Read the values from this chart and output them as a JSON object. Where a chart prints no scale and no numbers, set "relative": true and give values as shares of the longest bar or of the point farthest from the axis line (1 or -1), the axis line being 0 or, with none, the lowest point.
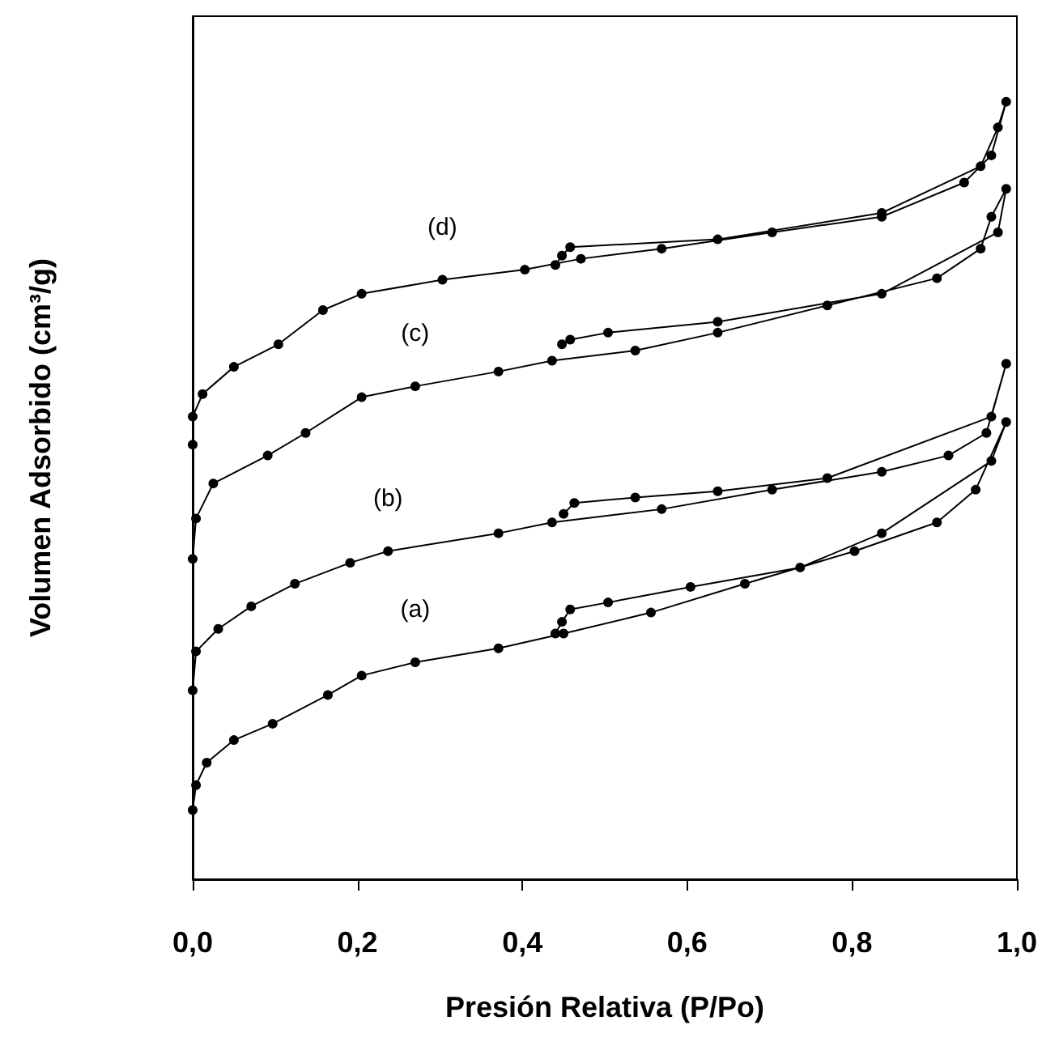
{
  "chart_data": {
    "type": "line",
    "relative": true,
    "xlabel": "Presión Relativa (P/Po)",
    "ylabel": "Volumen Adsorbido (cm³/g)",
    "xlim": [
      0,
      1
    ],
    "xticks": [
      {
        "value": 0,
        "label": "0,0"
      },
      {
        "value": 0.2,
        "label": "0,2"
      },
      {
        "value": 0.4,
        "label": "0,4"
      },
      {
        "value": 0.6,
        "label": "0,6"
      },
      {
        "value": 0.8,
        "label": "0,8"
      },
      {
        "value": 1,
        "label": "1,0"
      }
    ],
    "marker": "circle",
    "line_style": "solid",
    "series": [
      {
        "name": "(a)",
        "color": "#000000",
        "x": [
          0,
          0.004,
          0.017,
          0.05,
          0.097,
          0.164,
          0.205,
          0.27,
          0.371,
          0.45,
          0.556,
          0.67,
          0.803,
          0.903,
          0.95,
          0.987,
          0.969,
          0.836,
          0.737,
          0.604,
          0.504,
          0.458,
          0.448,
          0.44
        ],
        "values": [
          0.089,
          0.121,
          0.15,
          0.179,
          0.2,
          0.237,
          0.262,
          0.279,
          0.297,
          0.316,
          0.343,
          0.38,
          0.422,
          0.459,
          0.501,
          0.588,
          0.538,
          0.445,
          0.401,
          0.376,
          0.356,
          0.347,
          0.331,
          0.316
        ]
      },
      {
        "name": "(b)",
        "color": "#000000",
        "x": [
          0,
          0.004,
          0.031,
          0.071,
          0.124,
          0.191,
          0.237,
          0.371,
          0.436,
          0.569,
          0.703,
          0.836,
          0.917,
          0.963,
          0.987,
          0.969,
          0.77,
          0.637,
          0.537,
          0.463,
          0.45
        ],
        "values": [
          0.243,
          0.293,
          0.322,
          0.351,
          0.38,
          0.407,
          0.422,
          0.445,
          0.459,
          0.476,
          0.501,
          0.524,
          0.545,
          0.574,
          0.663,
          0.595,
          0.516,
          0.499,
          0.491,
          0.484,
          0.47
        ]
      },
      {
        "name": "(c)",
        "color": "#000000",
        "x": [
          0,
          0.004,
          0.025,
          0.091,
          0.137,
          0.205,
          0.27,
          0.371,
          0.436,
          0.537,
          0.637,
          0.77,
          0.903,
          0.956,
          0.969,
          0.987,
          0.977,
          0.836,
          0.637,
          0.504,
          0.458,
          0.448
        ],
        "values": [
          0.412,
          0.464,
          0.509,
          0.545,
          0.574,
          0.62,
          0.634,
          0.653,
          0.667,
          0.68,
          0.703,
          0.738,
          0.773,
          0.811,
          0.852,
          0.888,
          0.832,
          0.753,
          0.717,
          0.703,
          0.694,
          0.688
        ]
      },
      {
        "name": "(d)",
        "color": "#000000",
        "x": [
          0,
          0,
          0.012,
          0.05,
          0.104,
          0.158,
          0.205,
          0.303,
          0.403,
          0.471,
          0.569,
          0.703,
          0.836,
          0.936,
          0.969,
          0.987,
          0.977,
          0.956,
          0.836,
          0.637,
          0.458,
          0.448,
          0.44
        ],
        "values": [
          0.559,
          0.595,
          0.624,
          0.659,
          0.688,
          0.732,
          0.753,
          0.771,
          0.784,
          0.798,
          0.811,
          0.832,
          0.852,
          0.896,
          0.931,
          1,
          0.967,
          0.917,
          0.857,
          0.823,
          0.813,
          0.802,
          0.79
        ]
      }
    ]
  }
}
